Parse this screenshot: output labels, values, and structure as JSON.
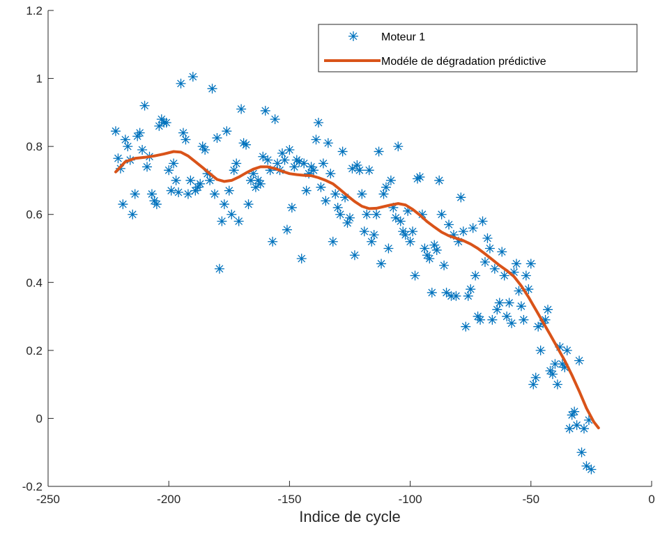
{
  "chart_data": {
    "type": "scatter",
    "xlabel": "Indice de cycle",
    "ylabel": "",
    "xlim": [
      -250,
      0
    ],
    "ylim": [
      -0.2,
      1.2
    ],
    "xticks": [
      -250,
      -200,
      -150,
      -100,
      -50,
      0
    ],
    "xtick_labels": [
      "-250",
      "-200",
      "-150",
      "-100",
      "-50",
      "0"
    ],
    "yticks": [
      -0.2,
      0,
      0.2,
      0.4,
      0.6,
      0.8,
      1,
      1.2
    ],
    "ytick_labels": [
      "-0.2",
      "0",
      "0.2",
      "0.4",
      "0.6",
      "0.8",
      "1",
      "1.2"
    ],
    "grid": false,
    "legend": {
      "placement": "top-right",
      "entries": [
        "Moteur 1",
        "Modéle de dégradation prédictive"
      ]
    },
    "series": [
      {
        "name": "Moteur 1",
        "type": "scatter",
        "marker": "asterisk",
        "color": "#0072BD",
        "points": [
          [
            -222,
            0.845
          ],
          [
            -221,
            0.765
          ],
          [
            -220,
            0.735
          ],
          [
            -219,
            0.63
          ],
          [
            -218,
            0.82
          ],
          [
            -217,
            0.8
          ],
          [
            -216,
            0.76
          ],
          [
            -215,
            0.6
          ],
          [
            -214,
            0.66
          ],
          [
            -213,
            0.83
          ],
          [
            -212,
            0.84
          ],
          [
            -211,
            0.79
          ],
          [
            -210,
            0.92
          ],
          [
            -209,
            0.74
          ],
          [
            -208,
            0.77
          ],
          [
            -207,
            0.66
          ],
          [
            -206,
            0.64
          ],
          [
            -205,
            0.63
          ],
          [
            -204,
            0.86
          ],
          [
            -203,
            0.88
          ],
          [
            -202,
            0.87
          ],
          [
            -201,
            0.87
          ],
          [
            -200,
            0.73
          ],
          [
            -199,
            0.67
          ],
          [
            -198,
            0.75
          ],
          [
            -197,
            0.7
          ],
          [
            -196,
            0.665
          ],
          [
            -195,
            0.985
          ],
          [
            -194,
            0.84
          ],
          [
            -193,
            0.82
          ],
          [
            -192,
            0.66
          ],
          [
            -191,
            0.7
          ],
          [
            -190,
            1.005
          ],
          [
            -189,
            0.67
          ],
          [
            -188,
            0.68
          ],
          [
            -187,
            0.69
          ],
          [
            -186,
            0.8
          ],
          [
            -185,
            0.79
          ],
          [
            -184,
            0.72
          ],
          [
            -183,
            0.7
          ],
          [
            -182,
            0.97
          ],
          [
            -181,
            0.66
          ],
          [
            -180,
            0.825
          ],
          [
            -179,
            0.44
          ],
          [
            -178,
            0.58
          ],
          [
            -177,
            0.63
          ],
          [
            -176,
            0.845
          ],
          [
            -175,
            0.67
          ],
          [
            -174,
            0.6
          ],
          [
            -173,
            0.73
          ],
          [
            -172,
            0.75
          ],
          [
            -171,
            0.58
          ],
          [
            -170,
            0.91
          ],
          [
            -169,
            0.81
          ],
          [
            -168,
            0.805
          ],
          [
            -167,
            0.63
          ],
          [
            -166,
            0.7
          ],
          [
            -165,
            0.72
          ],
          [
            -164,
            0.68
          ],
          [
            -163,
            0.7
          ],
          [
            -162,
            0.69
          ],
          [
            -161,
            0.77
          ],
          [
            -160,
            0.905
          ],
          [
            -159,
            0.76
          ],
          [
            -158,
            0.73
          ],
          [
            -157,
            0.52
          ],
          [
            -156,
            0.88
          ],
          [
            -155,
            0.75
          ],
          [
            -154,
            0.73
          ],
          [
            -153,
            0.78
          ],
          [
            -152,
            0.76
          ],
          [
            -151,
            0.555
          ],
          [
            -150,
            0.79
          ],
          [
            -149,
            0.62
          ],
          [
            -148,
            0.74
          ],
          [
            -147,
            0.76
          ],
          [
            -146,
            0.755
          ],
          [
            -145,
            0.47
          ],
          [
            -144,
            0.75
          ],
          [
            -143,
            0.67
          ],
          [
            -142,
            0.72
          ],
          [
            -141,
            0.74
          ],
          [
            -140,
            0.73
          ],
          [
            -139,
            0.82
          ],
          [
            -138,
            0.87
          ],
          [
            -137,
            0.68
          ],
          [
            -136,
            0.75
          ],
          [
            -135,
            0.64
          ],
          [
            -134,
            0.81
          ],
          [
            -133,
            0.72
          ],
          [
            -132,
            0.52
          ],
          [
            -131,
            0.66
          ],
          [
            -130,
            0.62
          ],
          [
            -129,
            0.6
          ],
          [
            -128,
            0.785
          ],
          [
            -127,
            0.65
          ],
          [
            -126,
            0.575
          ],
          [
            -125,
            0.59
          ],
          [
            -124,
            0.735
          ],
          [
            -123,
            0.48
          ],
          [
            -122,
            0.745
          ],
          [
            -121,
            0.73
          ],
          [
            -120,
            0.66
          ],
          [
            -119,
            0.55
          ],
          [
            -118,
            0.6
          ],
          [
            -117,
            0.73
          ],
          [
            -116,
            0.52
          ],
          [
            -115,
            0.54
          ],
          [
            -114,
            0.6
          ],
          [
            -113,
            0.785
          ],
          [
            -112,
            0.455
          ],
          [
            -111,
            0.66
          ],
          [
            -110,
            0.68
          ],
          [
            -109,
            0.5
          ],
          [
            -108,
            0.7
          ],
          [
            -107,
            0.62
          ],
          [
            -106,
            0.59
          ],
          [
            -105,
            0.8
          ],
          [
            -104,
            0.58
          ],
          [
            -103,
            0.55
          ],
          [
            -102,
            0.54
          ],
          [
            -101,
            0.61
          ],
          [
            -100,
            0.52
          ],
          [
            -99,
            0.55
          ],
          [
            -98,
            0.42
          ],
          [
            -97,
            0.705
          ],
          [
            -96,
            0.71
          ],
          [
            -95,
            0.6
          ],
          [
            -94,
            0.5
          ],
          [
            -93,
            0.48
          ],
          [
            -92,
            0.47
          ],
          [
            -91,
            0.37
          ],
          [
            -90,
            0.51
          ],
          [
            -89,
            0.495
          ],
          [
            -88,
            0.7
          ],
          [
            -87,
            0.6
          ],
          [
            -86,
            0.45
          ],
          [
            -85,
            0.37
          ],
          [
            -84,
            0.57
          ],
          [
            -83,
            0.36
          ],
          [
            -82,
            0.54
          ],
          [
            -81,
            0.36
          ],
          [
            -80,
            0.52
          ],
          [
            -79,
            0.65
          ],
          [
            -78,
            0.55
          ],
          [
            -77,
            0.27
          ],
          [
            -76,
            0.36
          ],
          [
            -75,
            0.38
          ],
          [
            -74,
            0.56
          ],
          [
            -73,
            0.42
          ],
          [
            -72,
            0.3
          ],
          [
            -71,
            0.29
          ],
          [
            -70,
            0.58
          ],
          [
            -69,
            0.46
          ],
          [
            -68,
            0.53
          ],
          [
            -67,
            0.5
          ],
          [
            -66,
            0.29
          ],
          [
            -65,
            0.44
          ],
          [
            -64,
            0.32
          ],
          [
            -63,
            0.34
          ],
          [
            -62,
            0.49
          ],
          [
            -61,
            0.42
          ],
          [
            -60,
            0.3
          ],
          [
            -59,
            0.34
          ],
          [
            -58,
            0.28
          ],
          [
            -57,
            0.43
          ],
          [
            -56,
            0.455
          ],
          [
            -55,
            0.375
          ],
          [
            -54,
            0.33
          ],
          [
            -53,
            0.29
          ],
          [
            -52,
            0.42
          ],
          [
            -51,
            0.38
          ],
          [
            -50,
            0.455
          ],
          [
            -49,
            0.1
          ],
          [
            -48,
            0.12
          ],
          [
            -47,
            0.27
          ],
          [
            -46,
            0.2
          ],
          [
            -45,
            0.28
          ],
          [
            -44,
            0.29
          ],
          [
            -43,
            0.32
          ],
          [
            -42,
            0.14
          ],
          [
            -41,
            0.13
          ],
          [
            -40,
            0.16
          ],
          [
            -39,
            0.1
          ],
          [
            -38,
            0.21
          ],
          [
            -37,
            0.16
          ],
          [
            -36,
            0.15
          ],
          [
            -35,
            0.2
          ],
          [
            -34,
            -0.03
          ],
          [
            -33,
            0.01
          ],
          [
            -32,
            0.02
          ],
          [
            -31,
            -0.02
          ],
          [
            -30,
            0.17
          ],
          [
            -29,
            -0.1
          ],
          [
            -28,
            -0.03
          ],
          [
            -27,
            -0.14
          ],
          [
            -26,
            -0.005
          ],
          [
            -25,
            -0.15
          ]
        ]
      },
      {
        "name": "Modéle de dégradation prédictive",
        "type": "line",
        "color": "#D95319",
        "points": [
          [
            -222,
            0.725
          ],
          [
            -218,
            0.755
          ],
          [
            -214,
            0.765
          ],
          [
            -210,
            0.768
          ],
          [
            -206,
            0.772
          ],
          [
            -202,
            0.778
          ],
          [
            -198,
            0.785
          ],
          [
            -195,
            0.783
          ],
          [
            -192,
            0.772
          ],
          [
            -189,
            0.755
          ],
          [
            -186,
            0.738
          ],
          [
            -183,
            0.72
          ],
          [
            -180,
            0.703
          ],
          [
            -177,
            0.697
          ],
          [
            -174,
            0.7
          ],
          [
            -171,
            0.71
          ],
          [
            -168,
            0.722
          ],
          [
            -165,
            0.733
          ],
          [
            -162,
            0.74
          ],
          [
            -159,
            0.74
          ],
          [
            -156,
            0.735
          ],
          [
            -153,
            0.727
          ],
          [
            -150,
            0.72
          ],
          [
            -147,
            0.717
          ],
          [
            -144,
            0.715
          ],
          [
            -141,
            0.714
          ],
          [
            -138,
            0.708
          ],
          [
            -135,
            0.7
          ],
          [
            -132,
            0.69
          ],
          [
            -129,
            0.673
          ],
          [
            -126,
            0.655
          ],
          [
            -123,
            0.638
          ],
          [
            -120,
            0.624
          ],
          [
            -117,
            0.617
          ],
          [
            -114,
            0.618
          ],
          [
            -111,
            0.623
          ],
          [
            -108,
            0.628
          ],
          [
            -105,
            0.632
          ],
          [
            -102,
            0.628
          ],
          [
            -99,
            0.615
          ],
          [
            -96,
            0.598
          ],
          [
            -93,
            0.579
          ],
          [
            -90,
            0.563
          ],
          [
            -87,
            0.548
          ],
          [
            -84,
            0.537
          ],
          [
            -81,
            0.53
          ],
          [
            -78,
            0.523
          ],
          [
            -75,
            0.513
          ],
          [
            -72,
            0.5
          ],
          [
            -69,
            0.484
          ],
          [
            -66,
            0.467
          ],
          [
            -63,
            0.45
          ],
          [
            -60,
            0.435
          ],
          [
            -57,
            0.417
          ],
          [
            -54,
            0.39
          ],
          [
            -51,
            0.357
          ],
          [
            -48,
            0.32
          ],
          [
            -45,
            0.283
          ],
          [
            -42,
            0.246
          ],
          [
            -39,
            0.208
          ],
          [
            -36,
            0.17
          ],
          [
            -33,
            0.127
          ],
          [
            -30,
            0.08
          ],
          [
            -27,
            0.03
          ],
          [
            -24,
            -0.01
          ],
          [
            -22,
            -0.028
          ]
        ]
      }
    ]
  }
}
